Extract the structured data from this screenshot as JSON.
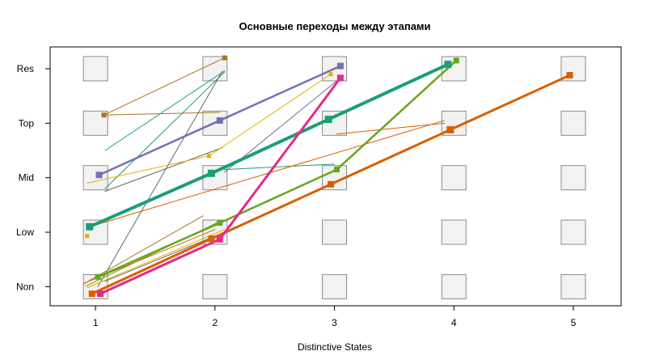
{
  "chart_data": {
    "type": "line",
    "title": "Основные переходы между этапами",
    "xlabel": "Distinctive States",
    "ylabel": "",
    "x_ticks": [
      1,
      2,
      3,
      4,
      5
    ],
    "y_categories": [
      "Non",
      "Low",
      "Mid",
      "Top",
      "Res"
    ],
    "xlim": [
      0.62,
      5.4
    ],
    "ylim": [
      0.65,
      5.4
    ],
    "grid": false,
    "transitions": [
      {
        "from": [
          1.08,
          3.5
        ],
        "to": [
          2.08,
          4.96
        ],
        "color": "#1b9e77",
        "width": 1
      },
      {
        "from": [
          1.08,
          2.8
        ],
        "to": [
          2.08,
          4.94
        ],
        "color": "#1b9e77",
        "width": 1
      },
      {
        "from": [
          1.02,
          1.0
        ],
        "to": [
          2.06,
          4.95
        ],
        "color": "#666666",
        "width": 1
      },
      {
        "from": [
          1.08,
          2.75
        ],
        "to": [
          2.06,
          3.55
        ],
        "color": "#666666",
        "width": 1
      },
      {
        "from": [
          1.07,
          4.15
        ],
        "to": [
          2.08,
          5.2
        ],
        "color": "#a6761d",
        "width": 1
      },
      {
        "from": [
          1.03,
          3.05
        ],
        "to": [
          2.08,
          4.1
        ],
        "color": "#7570b3",
        "width": 1
      },
      {
        "from": [
          1.07,
          3.1
        ],
        "to": [
          2.03,
          4.05
        ],
        "color": "#e7298a",
        "width": 1
      },
      {
        "from": [
          0.93,
          2.9
        ],
        "to": [
          1.95,
          3.4
        ],
        "color": "#e6ab02",
        "width": 1
      },
      {
        "from": [
          1.95,
          3.4
        ],
        "to": [
          2.97,
          4.9
        ],
        "color": "#e6ab02",
        "width": 1
      },
      {
        "from": [
          2.08,
          3.15
        ],
        "to": [
          3.0,
          3.25
        ],
        "color": "#1b9e77",
        "width": 1
      },
      {
        "from": [
          2.08,
          3.1
        ],
        "to": [
          3.06,
          4.85
        ],
        "color": "#7570b3",
        "width": 1
      },
      {
        "from": [
          0.93,
          0.98
        ],
        "to": [
          2.08,
          2.05
        ],
        "color": "#e6ab02",
        "width": 1
      },
      {
        "from": [
          1.08,
          1.1
        ],
        "to": [
          2.08,
          2.0
        ],
        "color": "#666666",
        "width": 1
      },
      {
        "from": [
          0.92,
          1.01
        ],
        "to": [
          2.06,
          2.22
        ],
        "color": "#66a61e",
        "width": 1
      },
      {
        "from": [
          0.9,
          1.05
        ],
        "to": [
          1.9,
          2.3
        ],
        "color": "#a6761d",
        "width": 1
      },
      {
        "from": [
          0.9,
          1.06
        ],
        "to": [
          2.0,
          2.05
        ],
        "color": "#d95f02",
        "width": 1
      },
      {
        "from": [
          1.06,
          4.15
        ],
        "to": [
          2.04,
          4.2
        ],
        "color": "#a6761d",
        "width": 1
      },
      {
        "from": [
          3.02,
          3.8
        ],
        "to": [
          3.92,
          4.0
        ],
        "color": "#d95f02",
        "width": 1
      },
      {
        "from": [
          0.95,
          2.1
        ],
        "to": [
          3.92,
          4.05
        ],
        "color": "#d95f02",
        "width": 1
      },
      {
        "from": [
          1.03,
          3.05
        ],
        "to": [
          2.04,
          4.05
        ],
        "color": "#7570b3",
        "width": 2.5
      },
      {
        "from": [
          2.04,
          4.05
        ],
        "to": [
          3.05,
          5.05
        ],
        "color": "#7570b3",
        "width": 2.5
      },
      {
        "from": [
          0.95,
          2.1
        ],
        "to": [
          1.97,
          3.08
        ],
        "color": "#1b9e77",
        "width": 4
      },
      {
        "from": [
          1.97,
          3.08
        ],
        "to": [
          2.95,
          4.07
        ],
        "color": "#1b9e77",
        "width": 4
      },
      {
        "from": [
          2.95,
          4.07
        ],
        "to": [
          3.95,
          5.08
        ],
        "color": "#1b9e77",
        "width": 4
      },
      {
        "from": [
          1.02,
          1.18
        ],
        "to": [
          2.04,
          2.17
        ],
        "color": "#66a61e",
        "width": 2.5
      },
      {
        "from": [
          2.04,
          2.17
        ],
        "to": [
          3.02,
          3.15
        ],
        "color": "#66a61e",
        "width": 2.5
      },
      {
        "from": [
          3.02,
          3.15
        ],
        "to": [
          4.02,
          5.15
        ],
        "color": "#66a61e",
        "width": 2.5
      },
      {
        "from": [
          0.97,
          0.87
        ],
        "to": [
          1.97,
          1.88
        ],
        "color": "#d95f02",
        "width": 3
      },
      {
        "from": [
          1.97,
          1.88
        ],
        "to": [
          2.97,
          2.88
        ],
        "color": "#d95f02",
        "width": 3
      },
      {
        "from": [
          2.97,
          2.88
        ],
        "to": [
          3.97,
          3.88
        ],
        "color": "#d95f02",
        "width": 3
      },
      {
        "from": [
          3.97,
          3.88
        ],
        "to": [
          4.97,
          4.88
        ],
        "color": "#d95f02",
        "width": 3
      },
      {
        "from": [
          1.04,
          0.87
        ],
        "to": [
          2.04,
          1.87
        ],
        "color": "#e7298a",
        "width": 3
      },
      {
        "from": [
          2.04,
          1.87
        ],
        "to": [
          3.05,
          4.83
        ],
        "color": "#e7298a",
        "width": 3
      }
    ],
    "markers": [
      {
        "x": 1.07,
        "y": 4.15,
        "color": "#a6761d",
        "size": 6
      },
      {
        "x": 2.08,
        "y": 5.2,
        "color": "#a6761d",
        "size": 6
      },
      {
        "x": 1.03,
        "y": 3.05,
        "color": "#7570b3",
        "size": 8
      },
      {
        "x": 2.04,
        "y": 4.05,
        "color": "#7570b3",
        "size": 8
      },
      {
        "x": 3.05,
        "y": 5.05,
        "color": "#7570b3",
        "size": 8
      },
      {
        "x": 0.95,
        "y": 2.1,
        "color": "#1b9e77",
        "size": 9
      },
      {
        "x": 1.97,
        "y": 3.08,
        "color": "#1b9e77",
        "size": 9
      },
      {
        "x": 2.95,
        "y": 4.07,
        "color": "#1b9e77",
        "size": 9
      },
      {
        "x": 3.95,
        "y": 5.08,
        "color": "#1b9e77",
        "size": 9
      },
      {
        "x": 0.93,
        "y": 1.93,
        "color": "#e6ab02",
        "size": 5
      },
      {
        "x": 1.95,
        "y": 3.4,
        "color": "#e6ab02",
        "size": 5
      },
      {
        "x": 2.97,
        "y": 4.9,
        "color": "#e6ab02",
        "size": 5
      },
      {
        "x": 1.02,
        "y": 1.18,
        "color": "#66a61e",
        "size": 7
      },
      {
        "x": 2.04,
        "y": 2.17,
        "color": "#66a61e",
        "size": 7
      },
      {
        "x": 3.02,
        "y": 3.15,
        "color": "#66a61e",
        "size": 7
      },
      {
        "x": 4.02,
        "y": 5.15,
        "color": "#66a61e",
        "size": 7
      },
      {
        "x": 0.97,
        "y": 0.87,
        "color": "#d95f02",
        "size": 8
      },
      {
        "x": 1.97,
        "y": 1.88,
        "color": "#d95f02",
        "size": 8
      },
      {
        "x": 2.97,
        "y": 2.88,
        "color": "#d95f02",
        "size": 8
      },
      {
        "x": 3.97,
        "y": 3.88,
        "color": "#d95f02",
        "size": 9
      },
      {
        "x": 4.97,
        "y": 4.88,
        "color": "#d95f02",
        "size": 8
      },
      {
        "x": 1.04,
        "y": 0.87,
        "color": "#e7298a",
        "size": 8
      },
      {
        "x": 2.04,
        "y": 1.87,
        "color": "#e7298a",
        "size": 8
      },
      {
        "x": 3.05,
        "y": 4.83,
        "color": "#e7298a",
        "size": 8
      }
    ]
  }
}
